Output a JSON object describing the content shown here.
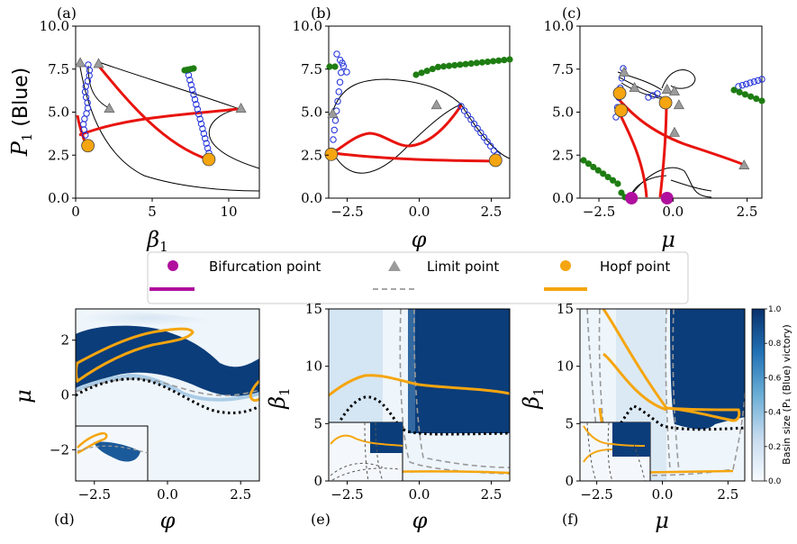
{
  "figure": {
    "legend": {
      "bifurcation": "Bifurcation point",
      "limit": "Limit point",
      "hopf": "Hopf point"
    },
    "colorbar": {
      "label": "Basin size (P₁ (Blue) victory)",
      "ticks": [
        "0.0",
        "0.2",
        "0.4",
        "0.6",
        "0.8",
        "1.0"
      ]
    },
    "colors": {
      "red": "#e8140e",
      "green": "#1e7d12",
      "blue_circle": "#1f2fd8",
      "bifurcation": "#b0109e",
      "limit": "#9b9b9b",
      "hopf": "#f5a50f",
      "basin_dark": "#0b3d7a",
      "basin_light": "#eef5fb"
    }
  },
  "chart_data": [
    {
      "id": "a",
      "tag": "(a)",
      "type": "line",
      "xlabel": "β1",
      "ylabel": "P₁ (Blue)",
      "xlim": [
        0,
        12
      ],
      "ylim": [
        0,
        10
      ],
      "xticks": [
        0,
        5,
        10
      ],
      "xtick_labels": [
        "0",
        "5",
        "10"
      ],
      "yticks": [
        0,
        2.5,
        5,
        7.5,
        10
      ],
      "ytick_labels": [
        "0.0",
        "2.5",
        "5.0",
        "7.5",
        "10.0"
      ],
      "limit_points": [
        [
          0.3,
          7.85
        ],
        [
          1.5,
          7.8
        ],
        [
          2.2,
          5.2
        ],
        [
          10.8,
          5.2
        ]
      ],
      "hopf_points": [
        [
          0.8,
          3.05
        ],
        [
          8.7,
          2.25
        ]
      ],
      "bifurcation_points": []
    },
    {
      "id": "b",
      "tag": "(b)",
      "type": "line",
      "xlabel": "φ",
      "ylabel": "",
      "xlim": [
        -3.14,
        3.14
      ],
      "ylim": [
        0,
        10
      ],
      "xticks": [
        -2.5,
        0,
        2.5
      ],
      "xtick_labels": [
        "−2.5",
        "0.0",
        "2.5"
      ],
      "yticks": [
        0,
        2.5,
        5,
        7.5,
        10
      ],
      "ytick_labels": [
        "0.0",
        "2.5",
        "5.0",
        "7.5",
        "10.0"
      ],
      "limit_points": [
        [
          -3.0,
          4.9
        ],
        [
          0.6,
          5.4
        ]
      ],
      "hopf_points": [
        [
          -3.05,
          2.55
        ],
        [
          2.65,
          2.2
        ]
      ],
      "bifurcation_points": []
    },
    {
      "id": "c",
      "tag": "(c)",
      "type": "line",
      "xlabel": "μ",
      "ylabel": "",
      "xlim": [
        -3.14,
        3.0
      ],
      "ylim": [
        0,
        10
      ],
      "xticks": [
        -2.5,
        0,
        2.5
      ],
      "xtick_labels": [
        "−2.5",
        "0.0",
        "2.5"
      ],
      "yticks": [
        0,
        2.5,
        5,
        7.5,
        10
      ],
      "ytick_labels": [
        "0.0",
        "2.5",
        "5.0",
        "7.5",
        "10.0"
      ],
      "limit_points": [
        [
          -1.65,
          7.3
        ],
        [
          -1.3,
          6.4
        ],
        [
          -0.2,
          6.3
        ],
        [
          0.05,
          6.2
        ],
        [
          0.2,
          5.4
        ],
        [
          0.05,
          3.8
        ],
        [
          2.4,
          1.9
        ]
      ],
      "hopf_points": [
        [
          -1.8,
          6.1
        ],
        [
          -1.75,
          5.1
        ],
        [
          -0.25,
          5.55
        ]
      ],
      "bifurcation_points": [
        [
          -1.4,
          0.0
        ],
        [
          -0.2,
          0.0
        ]
      ]
    },
    {
      "id": "d",
      "tag": "(d)",
      "type": "heatmap",
      "xlabel": "φ",
      "ylabel": "μ",
      "xlim": [
        -3.14,
        3.14
      ],
      "ylim": [
        -3.14,
        3.14
      ],
      "xticks": [
        -2.5,
        0,
        2.5
      ],
      "xtick_labels": [
        "−2.5",
        "0.0",
        "2.5"
      ],
      "yticks": [
        -2,
        0,
        2
      ],
      "ytick_labels": [
        "−2",
        "0",
        "2"
      ],
      "has_inset": true
    },
    {
      "id": "e",
      "tag": "(e)",
      "type": "heatmap",
      "xlabel": "φ",
      "ylabel": "β1",
      "xlim": [
        -3.14,
        3.14
      ],
      "ylim": [
        0,
        15
      ],
      "xticks": [
        -2.5,
        0,
        2.5
      ],
      "xtick_labels": [
        "−2.5",
        "0.0",
        "2.5"
      ],
      "yticks": [
        0,
        5,
        10,
        15
      ],
      "ytick_labels": [
        "0",
        "5",
        "10",
        "15"
      ],
      "has_inset": true
    },
    {
      "id": "f",
      "tag": "(f)",
      "type": "heatmap",
      "xlabel": "μ",
      "ylabel": "β1",
      "xlim": [
        -3.14,
        3.14
      ],
      "ylim": [
        0,
        15
      ],
      "xticks": [
        -2.5,
        0,
        2.5
      ],
      "xtick_labels": [
        "−2.5",
        "0.0",
        "2.5"
      ],
      "yticks": [
        0,
        5,
        10,
        15
      ],
      "ytick_labels": [
        "0",
        "5",
        "10",
        "15"
      ],
      "has_inset": true
    }
  ]
}
